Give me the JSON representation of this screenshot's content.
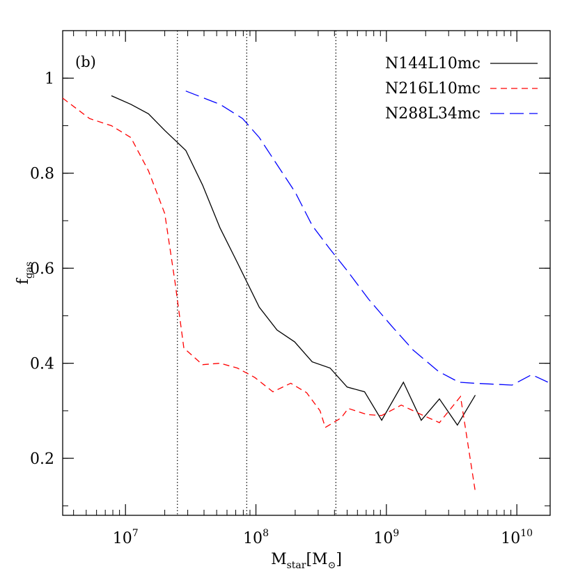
{
  "chart_data": {
    "type": "line",
    "panel_label": "(b)",
    "xlabel_main": "M",
    "xlabel_sub": "star",
    "xlabel_unit_open": "[M",
    "xlabel_unit_sym": "⊙",
    "xlabel_unit_close": "]",
    "ylabel_main": "f",
    "ylabel_sub": "gas",
    "xscale": "log",
    "xlim": [
      3300000.0,
      18000000000.0
    ],
    "ylim": [
      0.08,
      1.1
    ],
    "x_ticks": [
      {
        "value": 10000000.0,
        "base": "10",
        "exp": "7"
      },
      {
        "value": 100000000.0,
        "base": "10",
        "exp": "8"
      },
      {
        "value": 1000000000.0,
        "base": "10",
        "exp": "9"
      },
      {
        "value": 10000000000.0,
        "base": "10",
        "exp": "10"
      }
    ],
    "y_ticks": [
      {
        "value": 0.2,
        "label": "0.2"
      },
      {
        "value": 0.4,
        "label": "0.4"
      },
      {
        "value": 0.6,
        "label": "0.6"
      },
      {
        "value": 0.8,
        "label": "0.8"
      },
      {
        "value": 1.0,
        "label": "1"
      }
    ],
    "y_minor_step": 0.1,
    "vlines": [
      25000000.0,
      85000000.0,
      410000000.0
    ],
    "grid": false,
    "legend_position": "top-right",
    "series": [
      {
        "name": "N144L10mc",
        "color": "#000000",
        "dash": "solid",
        "points": [
          [
            7800000.0,
            0.963
          ],
          [
            11000000.0,
            0.945
          ],
          [
            15000000.0,
            0.925
          ],
          [
            20000000.0,
            0.89
          ],
          [
            29000000.0,
            0.848
          ],
          [
            39000000.0,
            0.775
          ],
          [
            53000000.0,
            0.685
          ],
          [
            72000000.0,
            0.612
          ],
          [
            106000000.0,
            0.518
          ],
          [
            145000000.0,
            0.47
          ],
          [
            198000000.0,
            0.445
          ],
          [
            270000000.0,
            0.403
          ],
          [
            370000000.0,
            0.39
          ],
          [
            500000000.0,
            0.35
          ],
          [
            680000000.0,
            0.34
          ],
          [
            920000000.0,
            0.28
          ],
          [
            1350000000.0,
            0.36
          ],
          [
            1850000000.0,
            0.28
          ],
          [
            2550000000.0,
            0.325
          ],
          [
            3500000000.0,
            0.27
          ],
          [
            4800000000.0,
            0.333
          ]
        ]
      },
      {
        "name": "N216L10mc",
        "color": "#ff0000",
        "dash": "short-dash",
        "points": [
          [
            3300000.0,
            0.958
          ],
          [
            5300000.0,
            0.915
          ],
          [
            7800000.0,
            0.9
          ],
          [
            11000000.0,
            0.875
          ],
          [
            15000000.0,
            0.805
          ],
          [
            20000000.0,
            0.715
          ],
          [
            24000000.0,
            0.57
          ],
          [
            28000000.0,
            0.432
          ],
          [
            39000000.0,
            0.397
          ],
          [
            53000000.0,
            0.4
          ],
          [
            72000000.0,
            0.39
          ],
          [
            98000000.0,
            0.37
          ],
          [
            135000000.0,
            0.34
          ],
          [
            185000000.0,
            0.358
          ],
          [
            245000000.0,
            0.338
          ],
          [
            310000000.0,
            0.3
          ],
          [
            340000000.0,
            0.265
          ],
          [
            450000000.0,
            0.285
          ],
          [
            510000000.0,
            0.305
          ],
          [
            710000000.0,
            0.292
          ],
          [
            920000000.0,
            0.29
          ],
          [
            1300000000.0,
            0.312
          ],
          [
            1850000000.0,
            0.292
          ],
          [
            2550000000.0,
            0.275
          ],
          [
            3700000000.0,
            0.33
          ],
          [
            4800000000.0,
            0.13
          ]
        ]
      },
      {
        "name": "N288L34mc",
        "color": "#0000ff",
        "dash": "long-dash",
        "points": [
          [
            29000000.0,
            0.973
          ],
          [
            53000000.0,
            0.945
          ],
          [
            79000000.0,
            0.915
          ],
          [
            106000000.0,
            0.875
          ],
          [
            145000000.0,
            0.818
          ],
          [
            200000000.0,
            0.76
          ],
          [
            270000000.0,
            0.69
          ],
          [
            370000000.0,
            0.64
          ],
          [
            500000000.0,
            0.595
          ],
          [
            730000000.0,
            0.535
          ],
          [
            1100000000.0,
            0.478
          ],
          [
            1600000000.0,
            0.428
          ],
          [
            2500000000.0,
            0.383
          ],
          [
            3600000000.0,
            0.36
          ],
          [
            4700000000.0,
            0.358
          ],
          [
            9200000000.0,
            0.354
          ],
          [
            13000000000.0,
            0.376
          ],
          [
            18000000000.0,
            0.358
          ]
        ]
      }
    ]
  }
}
